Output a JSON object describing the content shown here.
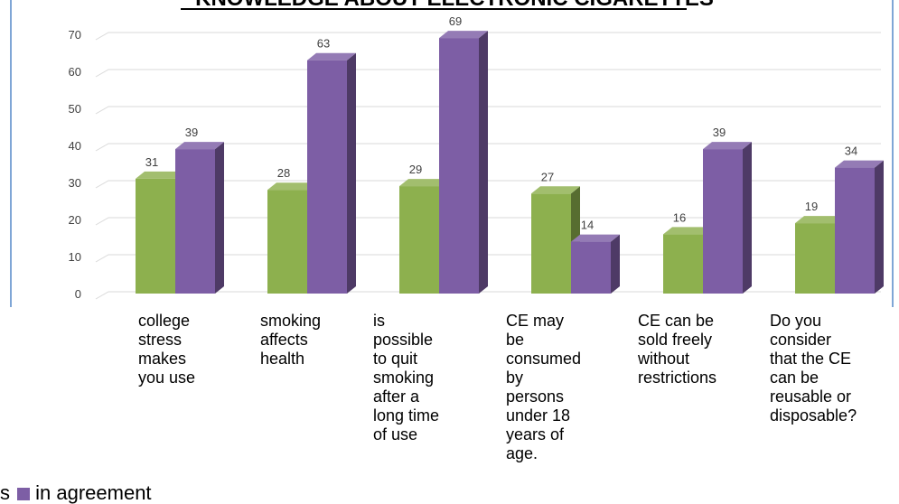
{
  "chart_data": {
    "type": "bar",
    "title": "KNOWLEDGE ABOUT ELECTRONIC CIGARETTES",
    "categories": [
      "college stress makes you use",
      "smoking affects health",
      " is possible to quit smoking after a long time of use",
      "CE may be consumed by persons under 18 years of age.",
      "CE can be sold freely without restrictions",
      "Do you consider that the CE can be reusable or disposable?"
    ],
    "category_lines": [
      [
        "college",
        "stress",
        "makes",
        "you use"
      ],
      [
        "smoking",
        "affects",
        "health"
      ],
      [
        "is",
        "possible",
        "to quit",
        "smoking",
        "after a",
        "long time",
        "of use"
      ],
      [
        "CE may",
        "be",
        "consumed",
        "by",
        "persons",
        "under 18",
        "years of",
        "age."
      ],
      [
        "CE can be",
        "sold freely",
        "without",
        "restrictions"
      ],
      [
        "Do you",
        "consider",
        "that the CE",
        "can be",
        "reusable or",
        "disposable?"
      ]
    ],
    "series": [
      {
        "name": "",
        "color": "#8db04e",
        "values": [
          31,
          28,
          29,
          27,
          16,
          19
        ]
      },
      {
        "name": "in agreement",
        "color": "#7d5ea5",
        "values": [
          39,
          63,
          69,
          14,
          39,
          34
        ]
      }
    ],
    "y_ticks": [
      "0",
      "10",
      "20",
      "30",
      "40",
      "50",
      "60",
      "70"
    ],
    "ylim": [
      0,
      70
    ],
    "grid": true,
    "legend_text_left": "s",
    "legend_text_right": "in agreement",
    "accent_line_color": "#7fa6d6"
  }
}
